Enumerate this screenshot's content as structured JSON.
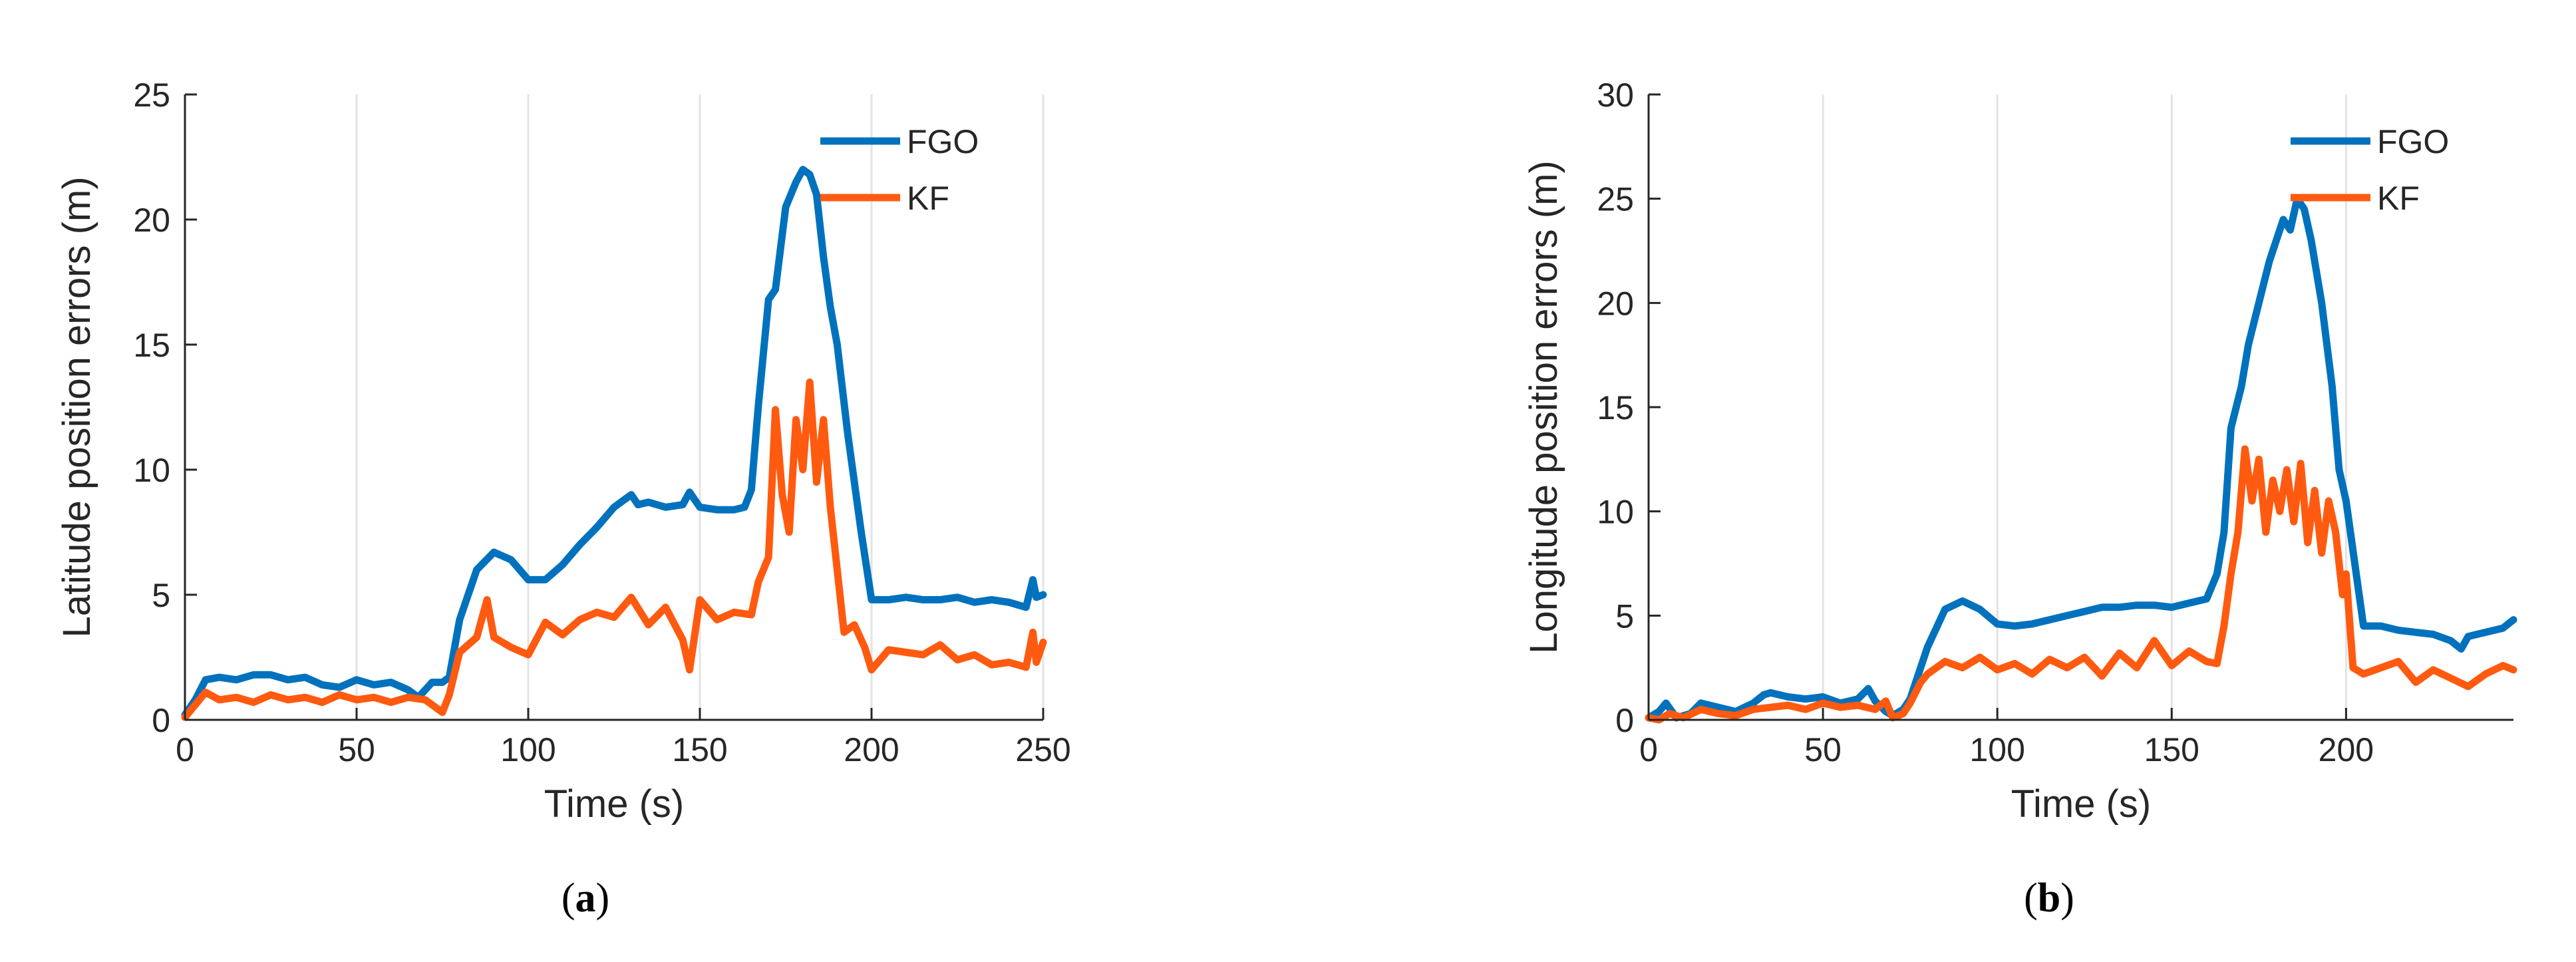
{
  "colors": {
    "fgo": "#0072BD",
    "kf": "#FF5A0F",
    "axis": "#262626",
    "grid": "#E3E3E3"
  },
  "panels": [
    {
      "caption": {
        "open": "(",
        "letter": "a",
        "close": ")"
      },
      "chart": {
        "type": "line",
        "xlabel": "Time (s)",
        "ylabel": "Latitude position errors (m)",
        "xlim": [
          0,
          250
        ],
        "ylim": [
          0,
          25
        ],
        "xticks": [
          0,
          50,
          100,
          150,
          200,
          250
        ],
        "yticks": [
          0,
          5,
          10,
          15,
          20,
          25
        ],
        "xgrid_vertical": true,
        "legend_position": "top-right",
        "series": [
          {
            "name": "FGO",
            "x": [
              0,
              3,
              6,
              10,
              15,
              20,
              25,
              30,
              35,
              40,
              45,
              50,
              55,
              60,
              65,
              68,
              72,
              75,
              77,
              80,
              85,
              90,
              95,
              100,
              105,
              110,
              115,
              120,
              125,
              130,
              132,
              135,
              140,
              145,
              147,
              150,
              155,
              160,
              163,
              165,
              167,
              170,
              172,
              175,
              178,
              180,
              182,
              184,
              186,
              188,
              190,
              193,
              197,
              200,
              205,
              210,
              215,
              220,
              225,
              230,
              235,
              240,
              245,
              247,
              248,
              250
            ],
            "y": [
              0.2,
              0.8,
              1.6,
              1.7,
              1.6,
              1.8,
              1.8,
              1.6,
              1.7,
              1.4,
              1.3,
              1.6,
              1.4,
              1.5,
              1.2,
              0.9,
              1.5,
              1.5,
              1.7,
              4.0,
              6.0,
              6.7,
              6.4,
              5.6,
              5.6,
              6.2,
              7.0,
              7.7,
              8.5,
              9.0,
              8.6,
              8.7,
              8.5,
              8.6,
              9.1,
              8.5,
              8.4,
              8.4,
              8.5,
              9.2,
              12.5,
              16.8,
              17.2,
              20.5,
              21.5,
              22.0,
              21.8,
              21.0,
              18.5,
              16.5,
              15.0,
              11.5,
              7.5,
              4.8,
              4.8,
              4.9,
              4.8,
              4.8,
              4.9,
              4.7,
              4.8,
              4.7,
              4.5,
              5.6,
              4.9,
              5.0
            ]
          },
          {
            "name": "KF",
            "x": [
              0,
              3,
              6,
              10,
              15,
              20,
              25,
              30,
              35,
              40,
              45,
              50,
              55,
              60,
              65,
              70,
              75,
              77,
              80,
              85,
              88,
              90,
              95,
              100,
              105,
              110,
              115,
              120,
              125,
              130,
              135,
              140,
              145,
              147,
              150,
              155,
              160,
              165,
              167,
              170,
              172,
              174,
              176,
              178,
              180,
              182,
              184,
              186,
              188,
              190,
              192,
              195,
              198,
              200,
              205,
              210,
              215,
              220,
              225,
              230,
              235,
              240,
              245,
              247,
              248,
              250
            ],
            "y": [
              0.1,
              0.6,
              1.1,
              0.8,
              0.9,
              0.7,
              1.0,
              0.8,
              0.9,
              0.7,
              1.0,
              0.8,
              0.9,
              0.7,
              0.9,
              0.8,
              0.3,
              1.0,
              2.7,
              3.3,
              4.8,
              3.3,
              2.9,
              2.6,
              3.9,
              3.4,
              4.0,
              4.3,
              4.1,
              4.9,
              3.8,
              4.5,
              3.2,
              2.0,
              4.8,
              4.0,
              4.3,
              4.2,
              5.5,
              6.5,
              12.4,
              9.0,
              7.5,
              12.0,
              10.0,
              13.5,
              9.5,
              12.0,
              8.5,
              6.0,
              3.5,
              3.8,
              2.9,
              2.0,
              2.8,
              2.7,
              2.6,
              3.0,
              2.4,
              2.6,
              2.2,
              2.3,
              2.1,
              3.5,
              2.3,
              3.1
            ]
          }
        ]
      }
    },
    {
      "caption": {
        "open": "(",
        "letter": "b",
        "close": ")"
      },
      "chart": {
        "type": "line",
        "xlabel": "Time (s)",
        "ylabel": "Longitude position errors (m)",
        "xlim": [
          0,
          248
        ],
        "ylim": [
          0,
          30
        ],
        "xticks": [
          0,
          50,
          100,
          150,
          200
        ],
        "yticks": [
          0,
          5,
          10,
          15,
          20,
          25,
          30
        ],
        "xgrid_vertical": true,
        "legend_position": "top-right",
        "series": [
          {
            "name": "FGO",
            "x": [
              0,
              3,
              5,
              8,
              12,
              15,
              20,
              25,
              30,
              33,
              35,
              40,
              45,
              50,
              55,
              60,
              63,
              65,
              68,
              70,
              73,
              75,
              80,
              85,
              90,
              95,
              100,
              105,
              110,
              115,
              120,
              125,
              130,
              135,
              140,
              145,
              150,
              155,
              160,
              163,
              165,
              167,
              170,
              172,
              175,
              178,
              180,
              182,
              184,
              186,
              188,
              190,
              193,
              196,
              198,
              200,
              205,
              210,
              215,
              220,
              225,
              230,
              233,
              235,
              240,
              245,
              248
            ],
            "y": [
              0.1,
              0.4,
              0.8,
              0.1,
              0.3,
              0.8,
              0.6,
              0.4,
              0.8,
              1.2,
              1.3,
              1.1,
              1.0,
              1.1,
              0.8,
              1.0,
              1.5,
              0.9,
              0.4,
              0.2,
              0.5,
              1.0,
              3.5,
              5.3,
              5.7,
              5.3,
              4.6,
              4.5,
              4.6,
              4.8,
              5.0,
              5.2,
              5.4,
              5.4,
              5.5,
              5.5,
              5.4,
              5.6,
              5.8,
              7.0,
              9.0,
              14.0,
              16.0,
              18.0,
              20.0,
              22.0,
              23.0,
              24.0,
              23.5,
              25.0,
              24.5,
              23.0,
              20.0,
              16.0,
              12.0,
              10.5,
              4.5,
              4.5,
              4.3,
              4.2,
              4.1,
              3.8,
              3.4,
              4.0,
              4.2,
              4.4,
              4.8
            ]
          },
          {
            "name": "KF",
            "x": [
              0,
              3,
              6,
              10,
              15,
              20,
              25,
              30,
              35,
              40,
              45,
              50,
              55,
              60,
              65,
              68,
              70,
              73,
              75,
              78,
              80,
              85,
              90,
              95,
              100,
              105,
              110,
              115,
              120,
              125,
              130,
              135,
              140,
              145,
              150,
              155,
              160,
              163,
              165,
              167,
              169,
              171,
              173,
              175,
              177,
              179,
              181,
              183,
              185,
              187,
              189,
              191,
              193,
              195,
              197,
              199,
              200,
              202,
              205,
              210,
              215,
              220,
              225,
              230,
              235,
              240,
              245,
              248
            ],
            "y": [
              0.1,
              0.0,
              0.3,
              0.1,
              0.5,
              0.3,
              0.2,
              0.5,
              0.6,
              0.7,
              0.5,
              0.8,
              0.6,
              0.7,
              0.5,
              0.9,
              0.1,
              0.3,
              0.8,
              1.8,
              2.2,
              2.8,
              2.5,
              3.0,
              2.4,
              2.7,
              2.2,
              2.9,
              2.5,
              3.0,
              2.1,
              3.2,
              2.5,
              3.8,
              2.6,
              3.3,
              2.8,
              2.7,
              4.5,
              7.0,
              9.0,
              13.0,
              10.5,
              12.5,
              9.0,
              11.5,
              10.0,
              12.0,
              9.5,
              12.3,
              8.5,
              11.0,
              8.0,
              10.5,
              9.0,
              6.0,
              7.0,
              2.5,
              2.2,
              2.5,
              2.8,
              1.8,
              2.4,
              2.0,
              1.6,
              2.2,
              2.6,
              2.4
            ]
          }
        ]
      }
    }
  ]
}
